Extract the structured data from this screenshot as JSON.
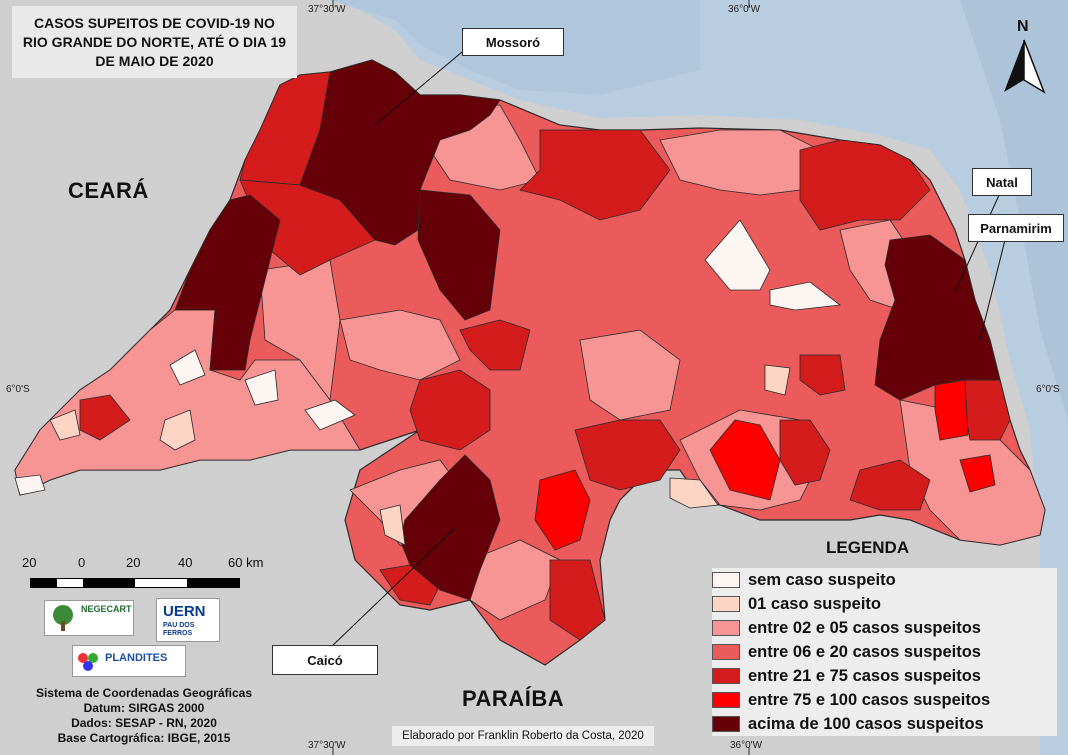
{
  "title": {
    "line1": "CASOS SUPEITOS DE COVID-19 NO",
    "line2": "RIO GRANDE DO NORTE, ATÉ O DIA 19",
    "line3": "DE MAIO DE 2020"
  },
  "coords": {
    "top_left": "37°30'W",
    "top_right": "36°0'W",
    "bottom_left": "37°30'W",
    "bottom_right": "36°0'W",
    "left_lat": "6°0'S",
    "right_lat": "6°0'S"
  },
  "states": {
    "west": "CEARÁ",
    "south": "PARAÍBA"
  },
  "cities": {
    "mossoro": "Mossoró",
    "natal": "Natal",
    "parnamirim": "Parnamirim",
    "caico": "Caicó"
  },
  "north": {
    "letter": "N"
  },
  "legend": {
    "title": "LEGENDA",
    "items": [
      {
        "label": "sem caso suspeito",
        "color": "#fdf5f2"
      },
      {
        "label": "01 caso suspeito",
        "color": "#fdd5c5"
      },
      {
        "label": "entre 02 e 05 casos suspeitos",
        "color": "#f79494"
      },
      {
        "label": "entre 06 e 20 casos suspeitos",
        "color": "#ec5b5b"
      },
      {
        "label": "entre 21 e 75 casos suspeitos",
        "color": "#d51c1c"
      },
      {
        "label": "entre 75 e 100 casos suspeitos",
        "color": "#fe0000"
      },
      {
        "label": "acima de 100 casos suspeitos",
        "color": "#650008"
      }
    ]
  },
  "scale": {
    "n20a": "20",
    "n0": "0",
    "n20b": "20",
    "n40": "40",
    "n60": "60 km"
  },
  "logos": {
    "negecart": "NEGECART",
    "uern": "UERN",
    "uern_sub": "PAU DOS FERROS",
    "plandites": "PLANDITES"
  },
  "info": {
    "line1": "Sistema de Coordenadas Geográficas",
    "line2": "Datum: SIRGAS 2000",
    "line3": "Dados: SESAP - RN, 2020",
    "line4": "Base Cartográfica: IBGE, 2015"
  },
  "credit": "Elaborado por Franklin Roberto da Costa, 2020",
  "colors": {
    "ocean": "#b9cde1",
    "land_outside": "#cfcfcf",
    "border": "#2a2a2a"
  }
}
